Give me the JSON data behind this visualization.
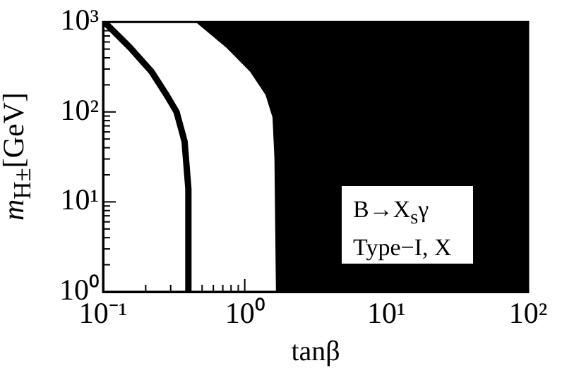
{
  "chart_data": {
    "type": "line",
    "xlabel": "tanβ",
    "ylabel": "m$_{H±}$[GeV]",
    "annotations": [
      "B→X$_{s}$γ",
      "Type−I, X"
    ],
    "log": "xy",
    "grid": false,
    "legend": false,
    "marker": "none",
    "xlim": [
      0.1,
      100
    ],
    "ylim": [
      1,
      1000
    ],
    "xticks": [
      {
        "value": 0.1,
        "label": "10⁻¹"
      },
      {
        "value": 0.2,
        "label": null
      },
      {
        "value": 0.3,
        "label": null
      },
      {
        "value": 0.4,
        "label": null
      },
      {
        "value": 0.5,
        "label": null
      },
      {
        "value": 0.6,
        "label": null
      },
      {
        "value": 0.7,
        "label": null
      },
      {
        "value": 0.8,
        "label": null
      },
      {
        "value": 0.9,
        "label": null
      },
      {
        "value": 1,
        "label": "10⁰"
      },
      {
        "value": 2,
        "label": null
      },
      {
        "value": 3,
        "label": null
      },
      {
        "value": 4,
        "label": null
      },
      {
        "value": 5,
        "label": null
      },
      {
        "value": 6,
        "label": null
      },
      {
        "value": 7,
        "label": null
      },
      {
        "value": 8,
        "label": null
      },
      {
        "value": 9,
        "label": null
      },
      {
        "value": 10,
        "label": "10¹"
      },
      {
        "value": 20,
        "label": null
      },
      {
        "value": 30,
        "label": null
      },
      {
        "value": 40,
        "label": null
      },
      {
        "value": 50,
        "label": null
      },
      {
        "value": 60,
        "label": null
      },
      {
        "value": 70,
        "label": null
      },
      {
        "value": 80,
        "label": null
      },
      {
        "value": 90,
        "label": null
      },
      {
        "value": 100,
        "label": "10²"
      }
    ],
    "yticks": [
      {
        "value": 1,
        "label": "10⁰"
      },
      {
        "value": 2,
        "label": null
      },
      {
        "value": 3,
        "label": null
      },
      {
        "value": 4,
        "label": null
      },
      {
        "value": 5,
        "label": null
      },
      {
        "value": 6,
        "label": null
      },
      {
        "value": 7,
        "label": null
      },
      {
        "value": 8,
        "label": null
      },
      {
        "value": 9,
        "label": null
      },
      {
        "value": 10,
        "label": "10¹"
      },
      {
        "value": 20,
        "label": null
      },
      {
        "value": 30,
        "label": null
      },
      {
        "value": 40,
        "label": null
      },
      {
        "value": 50,
        "label": null
      },
      {
        "value": 60,
        "label": null
      },
      {
        "value": 70,
        "label": null
      },
      {
        "value": 80,
        "label": null
      },
      {
        "value": 90,
        "label": null
      },
      {
        "value": 100,
        "label": "10²"
      },
      {
        "value": 200,
        "label": null
      },
      {
        "value": 300,
        "label": null
      },
      {
        "value": 400,
        "label": null
      },
      {
        "value": 500,
        "label": null
      },
      {
        "value": 600,
        "label": null
      },
      {
        "value": 700,
        "label": null
      },
      {
        "value": 800,
        "label": null
      },
      {
        "value": 900,
        "label": null
      },
      {
        "value": 1000,
        "label": "10³"
      }
    ],
    "series": [
      {
        "type": "area",
        "color": "#000000",
        "x": [
          0.45,
          0.74,
          1.09,
          1.4,
          1.57,
          1.62,
          1.66,
          100,
          100
        ],
        "values": [
          1000,
          520,
          280,
          155,
          87,
          30,
          1,
          1,
          1000
        ]
      },
      {
        "type": "line",
        "color": "#000000",
        "x": [
          0.102,
          0.155,
          0.22,
          0.28,
          0.33,
          0.376,
          0.4,
          0.4
        ],
        "values": [
          1000,
          520,
          280,
          155,
          100,
          47,
          14,
          1
        ]
      }
    ]
  }
}
